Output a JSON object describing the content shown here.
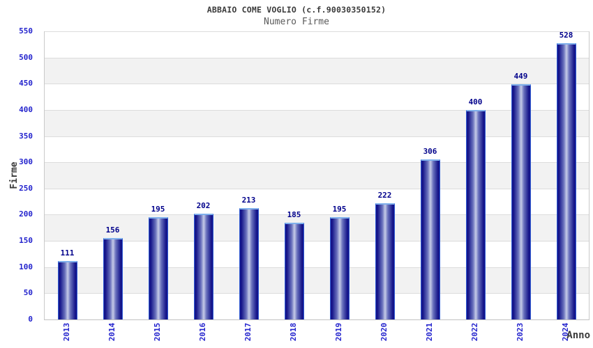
{
  "header": {
    "title": "ABBAIO COME VOGLIO (c.f.90030350152)",
    "subtitle": "Numero Firme"
  },
  "chart_data": {
    "type": "bar",
    "title": "ABBAIO COME VOGLIO (c.f.90030350152)",
    "subtitle": "Numero Firme",
    "xlabel": "Anno",
    "ylabel": "Firme",
    "categories": [
      "2013",
      "2014",
      "2015",
      "2016",
      "2017",
      "2018",
      "2019",
      "2020",
      "2021",
      "2022",
      "2023",
      "2024"
    ],
    "values": [
      111,
      156,
      195,
      202,
      213,
      185,
      195,
      222,
      306,
      400,
      449,
      528
    ],
    "ylim": [
      0,
      550
    ],
    "ytick_step": 50,
    "yticks": [
      0,
      50,
      100,
      150,
      200,
      250,
      300,
      350,
      400,
      450,
      500,
      550
    ],
    "grid": true,
    "legend_position": "none",
    "style": {
      "bar_dark": "#15158a",
      "bar_mid": "#6a72bd",
      "bar_light": "#c6cbe8",
      "bar_border": "#2f5bd4",
      "bar_top_border": "#7fb0ec",
      "value_label_color": "#00008b",
      "tick_label_color": "#2323cd",
      "grid_color": "#dcdcdc",
      "band_color": "#f2f2f2",
      "title_color": "#3a3a3a",
      "subtitle_color": "#5a5a5a",
      "axis_title_color": "#3a3a3a",
      "background": "#ffffff"
    }
  }
}
